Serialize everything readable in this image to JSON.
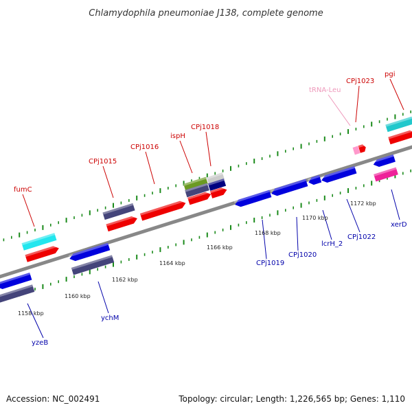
{
  "title": "Chlamydophila pneumoniae J138, complete genome",
  "footer": {
    "accession": "Accession: NC_002491",
    "summary": "Topology: circular; Length: 1,226,565 bp; Genes: 1,110"
  },
  "colors": {
    "backbone": "#888888",
    "red_cds": "#ee0000",
    "blue_cds": "#0000dd",
    "navy_cds": "#44447a",
    "cyan": "#22e6ee",
    "teal": "#22c8cc",
    "olive": "#6b9a22",
    "magenta": "#ee2299",
    "trna": "#ff99cc",
    "tick": "#1a8a1a",
    "label_red": "#cc0000",
    "label_blue": "#0000aa",
    "label_pink": "#ee99bb"
  },
  "scale_labels": [
    "1158 kbp",
    "1160 kbp",
    "1162 kbp",
    "1164 kbp",
    "1166 kbp",
    "1168 kbp",
    "1170 kbp",
    "1172 kbp"
  ],
  "gene_labels": [
    {
      "name": "fumC",
      "strand": "forward"
    },
    {
      "name": "CPj1015",
      "strand": "forward"
    },
    {
      "name": "CPj1016",
      "strand": "forward"
    },
    {
      "name": "ispH",
      "strand": "forward"
    },
    {
      "name": "CPj1018",
      "strand": "forward"
    },
    {
      "name": "tRNA-Leu",
      "strand": "forward"
    },
    {
      "name": "CPj1023",
      "strand": "forward"
    },
    {
      "name": "pgi",
      "strand": "forward"
    },
    {
      "name": "yzeB",
      "strand": "reverse"
    },
    {
      "name": "ychM",
      "strand": "reverse"
    },
    {
      "name": "CPj1019",
      "strand": "reverse"
    },
    {
      "name": "CPj1020",
      "strand": "reverse"
    },
    {
      "name": "lcrH_2",
      "strand": "reverse"
    },
    {
      "name": "CPj1022",
      "strand": "reverse"
    },
    {
      "name": "xerD",
      "strand": "reverse"
    }
  ]
}
